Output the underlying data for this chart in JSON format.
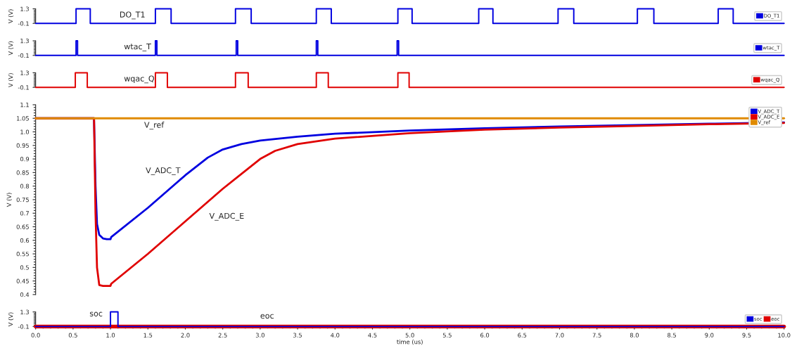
{
  "chart_data": [
    {
      "type": "step",
      "ylabel": "V (V)",
      "xlim": [
        0,
        10
      ],
      "ylim": [
        -0.1,
        1.3
      ],
      "yticks": [
        -0.1,
        1.3
      ],
      "tick_labels": "y",
      "legend": "right",
      "series": [
        {
          "name": "DO_T1",
          "color": "#0000e0",
          "x": [
            0,
            0.54,
            0.73,
            1.6,
            1.81,
            2.67,
            2.88,
            3.75,
            3.95,
            4.84,
            5.03,
            5.92,
            6.11,
            6.98,
            7.19,
            8.04,
            8.26,
            9.12,
            9.32,
            10
          ],
          "values": [
            -0.1,
            1.3,
            -0.1,
            1.3,
            -0.1,
            1.3,
            -0.1,
            1.3,
            -0.1,
            1.3,
            -0.1,
            1.3,
            -0.1,
            1.3,
            -0.1,
            1.3,
            -0.1,
            1.3,
            -0.1,
            -0.1
          ]
        }
      ],
      "annotations": [
        "DO_T1"
      ]
    },
    {
      "type": "step",
      "ylabel": "V (V)",
      "xlim": [
        0,
        10
      ],
      "ylim": [
        -0.1,
        1.3
      ],
      "yticks": [
        -0.1,
        1.3
      ],
      "tick_labels": "y",
      "legend": "right",
      "series": [
        {
          "name": "wtac_T",
          "color": "#0000e0",
          "x": [
            0,
            0.54,
            0.56,
            1.6,
            1.62,
            2.68,
            2.7,
            3.75,
            3.77,
            4.83,
            4.85,
            10
          ],
          "values": [
            -0.1,
            1.3,
            -0.1,
            1.3,
            -0.1,
            1.3,
            -0.1,
            1.3,
            -0.1,
            1.3,
            -0.1,
            -0.1
          ]
        }
      ],
      "annotations": [
        "wtac_T"
      ]
    },
    {
      "type": "step",
      "ylabel": "V (V)",
      "xlim": [
        0,
        10
      ],
      "ylim": [
        -0.1,
        1.3
      ],
      "yticks": [
        -0.1,
        1.3
      ],
      "tick_labels": "y",
      "legend": "right",
      "series": [
        {
          "name": "wqac_Q",
          "color": "#e00000",
          "x": [
            0,
            0.53,
            0.69,
            1.6,
            1.76,
            2.67,
            2.84,
            3.75,
            3.91,
            4.84,
            4.99,
            10
          ],
          "values": [
            -0.1,
            1.3,
            -0.1,
            1.3,
            -0.1,
            1.3,
            -0.1,
            1.3,
            -0.1,
            1.3,
            -0.1,
            -0.1
          ]
        }
      ],
      "annotations": [
        "wqac_Q"
      ]
    },
    {
      "type": "line",
      "ylabel": "V (V)",
      "xlim": [
        0,
        10
      ],
      "ylim": [
        0.4,
        1.1
      ],
      "yticks": [
        0.4,
        0.45,
        0.5,
        0.55,
        0.6,
        0.65,
        0.7,
        0.75,
        0.8,
        0.85,
        0.9,
        0.95,
        {
          "value": 1,
          "label": "1.0"
        },
        1.05,
        1.1
      ],
      "tick_labels": "y",
      "legend": "top right",
      "series": [
        {
          "name": "V_ADC_T",
          "color": "#0000e0",
          "x": [
            0,
            0.78,
            0.8,
            0.82,
            0.85,
            0.9,
            0.95,
            1.0,
            1.01,
            1.5,
            2.0,
            2.3,
            2.5,
            2.75,
            3.0,
            3.5,
            4.0,
            5.0,
            6.0,
            7.0,
            8.0,
            9.0,
            10.0
          ],
          "values": [
            1.05,
            1.05,
            0.8,
            0.66,
            0.62,
            0.607,
            0.604,
            0.604,
            0.612,
            0.72,
            0.84,
            0.905,
            0.935,
            0.955,
            0.968,
            0.982,
            0.993,
            1.005,
            1.013,
            1.02,
            1.025,
            1.03,
            1.035
          ]
        },
        {
          "name": "V_ADC_E",
          "color": "#e00000",
          "x": [
            0,
            0.78,
            0.8,
            0.82,
            0.85,
            0.9,
            1.0,
            1.01,
            1.5,
            2.0,
            2.5,
            3.0,
            3.2,
            3.5,
            4.0,
            5.0,
            6.0,
            7.0,
            8.0,
            9.0,
            10.0
          ],
          "values": [
            1.05,
            1.05,
            0.7,
            0.5,
            0.435,
            0.432,
            0.432,
            0.44,
            0.55,
            0.67,
            0.79,
            0.9,
            0.93,
            0.955,
            0.975,
            0.995,
            1.008,
            1.016,
            1.022,
            1.028,
            1.033
          ]
        },
        {
          "name": "V_ref",
          "color": "#e08a00",
          "x": [
            0,
            10
          ],
          "values": [
            1.05,
            1.05
          ]
        }
      ],
      "annotations": [
        "V_ref",
        "V_ADC_T",
        "V_ADC_E"
      ]
    },
    {
      "type": "step",
      "ylabel": "V (V)",
      "xlabel": "time (us)",
      "xlim": [
        0,
        10
      ],
      "ylim": [
        -0.1,
        1.3
      ],
      "yticks": [
        -0.1,
        1.3
      ],
      "legend": "right",
      "xticks": [
        {
          "value": 0,
          "label": "0.0"
        },
        0.5,
        {
          "value": 1,
          "label": "1.0"
        },
        1.5,
        {
          "value": 2,
          "label": "2.0"
        },
        2.5,
        {
          "value": 3,
          "label": "3.0"
        },
        3.5,
        {
          "value": 4,
          "label": "4.0"
        },
        4.5,
        {
          "value": 5,
          "label": "5.0"
        },
        5.5,
        {
          "value": 6,
          "label": "6.0"
        },
        6.5,
        {
          "value": 7,
          "label": "7.0"
        },
        7.5,
        {
          "value": 8,
          "label": "8.0"
        },
        8.5,
        {
          "value": 9,
          "label": "9.0"
        },
        9.5,
        {
          "value": 10,
          "label": "10.0"
        }
      ],
      "series": [
        {
          "name": "soc",
          "color": "#0000e0",
          "x": [
            0,
            1.0,
            1.1,
            10
          ],
          "values": [
            -0.1,
            1.3,
            -0.1,
            -0.1
          ]
        },
        {
          "name": "eoc",
          "color": "#e00000",
          "x": [
            0,
            10
          ],
          "values": [
            -0.1,
            -0.1
          ]
        }
      ],
      "annotations": [
        "soc",
        "eoc"
      ]
    }
  ]
}
